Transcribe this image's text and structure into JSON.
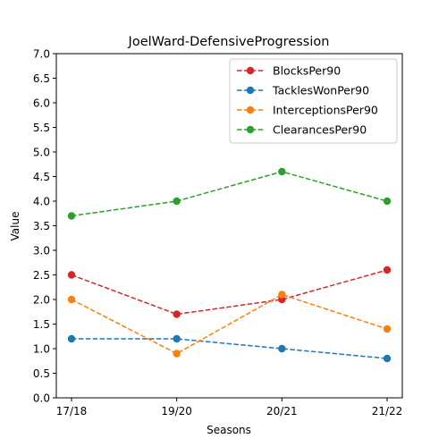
{
  "chart_data": {
    "type": "line",
    "title": "JoelWard-DefensiveProgression",
    "xlabel": "Seasons",
    "ylabel": "Value",
    "categories": [
      "17/18",
      "19/20",
      "20/21",
      "21/22"
    ],
    "ylim": [
      0,
      7
    ],
    "yticks": [
      "0.0",
      "0.5",
      "1.0",
      "1.5",
      "2.0",
      "2.5",
      "3.0",
      "3.5",
      "4.0",
      "4.5",
      "5.0",
      "5.5",
      "6.0",
      "6.5",
      "7.0"
    ],
    "grid": false,
    "legend_position": "top-right",
    "line_style": "dashed",
    "marker": "circle",
    "series": [
      {
        "name": "BlocksPer90",
        "color": "#d62728",
        "values": [
          2.5,
          1.7,
          2.0,
          2.6
        ]
      },
      {
        "name": "TacklesWonPer90",
        "color": "#1f77b4",
        "values": [
          1.2,
          1.2,
          1.0,
          0.8
        ]
      },
      {
        "name": "InterceptionsPer90",
        "color": "#ff7f0e",
        "values": [
          2.0,
          0.9,
          2.1,
          1.4
        ]
      },
      {
        "name": "ClearancesPer90",
        "color": "#2ca02c",
        "values": [
          3.7,
          4.0,
          4.6,
          4.0
        ]
      }
    ]
  }
}
